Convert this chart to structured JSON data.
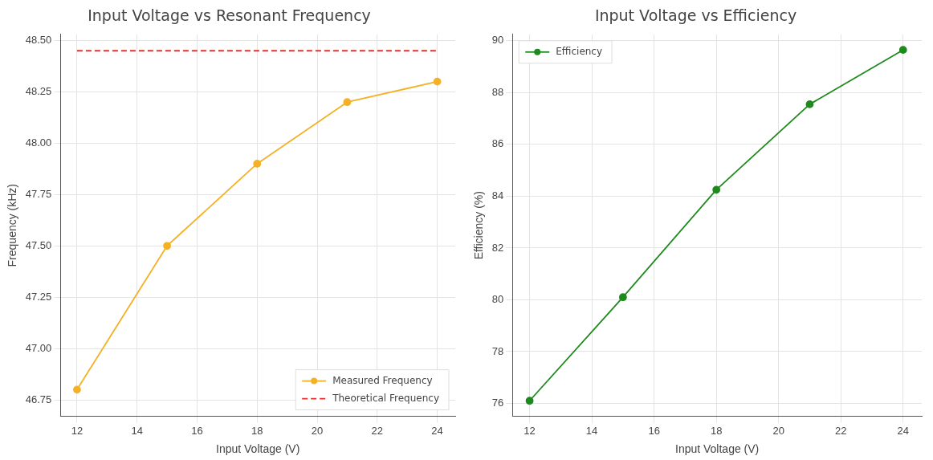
{
  "chart_data": [
    {
      "type": "line",
      "title": "Input Voltage vs Resonant Frequency",
      "xlabel": "Input Voltage (V)",
      "ylabel": "Frequency (kHz)",
      "x": [
        12,
        15,
        18,
        21,
        24
      ],
      "series": [
        {
          "name": "Measured Frequency",
          "color": "#f5b125",
          "values": [
            46.8,
            47.5,
            47.9,
            48.2,
            48.3
          ],
          "marker": "circle",
          "line_style": "solid"
        },
        {
          "name": "Theoretical Frequency",
          "color": "#e8302c",
          "x": [
            12,
            24
          ],
          "values": [
            48.45,
            48.45
          ],
          "marker": "none",
          "line_style": "dashed"
        }
      ],
      "xlim": [
        11.45,
        24.6
      ],
      "xticks": [
        12,
        14,
        16,
        18,
        20,
        22,
        24
      ],
      "ylim": [
        46.67,
        48.53
      ],
      "yticks": [
        {
          "value": 46.75,
          "label": "46.75"
        },
        {
          "value": 47,
          "label": "47.00"
        },
        {
          "value": 47.25,
          "label": "47.25"
        },
        {
          "value": 47.5,
          "label": "47.50"
        },
        {
          "value": 47.75,
          "label": "47.75"
        },
        {
          "value": 48,
          "label": "48.00"
        },
        {
          "value": 48.25,
          "label": "48.25"
        },
        {
          "value": 48.5,
          "label": "48.50"
        }
      ],
      "grid": true,
      "legend": "bottom right"
    },
    {
      "type": "line",
      "title": "Input Voltage vs Efficiency",
      "xlabel": "Input Voltage (V)",
      "ylabel": "Efficiency (%)",
      "x": [
        12,
        15,
        18,
        21,
        24
      ],
      "series": [
        {
          "name": "Efficiency",
          "color": "#1e8a1e",
          "values": [
            76.1,
            80.1,
            84.25,
            87.55,
            89.65
          ],
          "marker": "circle",
          "line_style": "solid"
        }
      ],
      "xlim": [
        11.45,
        24.6
      ],
      "xticks": [
        12,
        14,
        16,
        18,
        20,
        22,
        24
      ],
      "ylim": [
        75.5,
        90.25
      ],
      "yticks": [
        76,
        78,
        80,
        82,
        84,
        86,
        88,
        90
      ],
      "grid": true,
      "legend": "top left"
    }
  ]
}
